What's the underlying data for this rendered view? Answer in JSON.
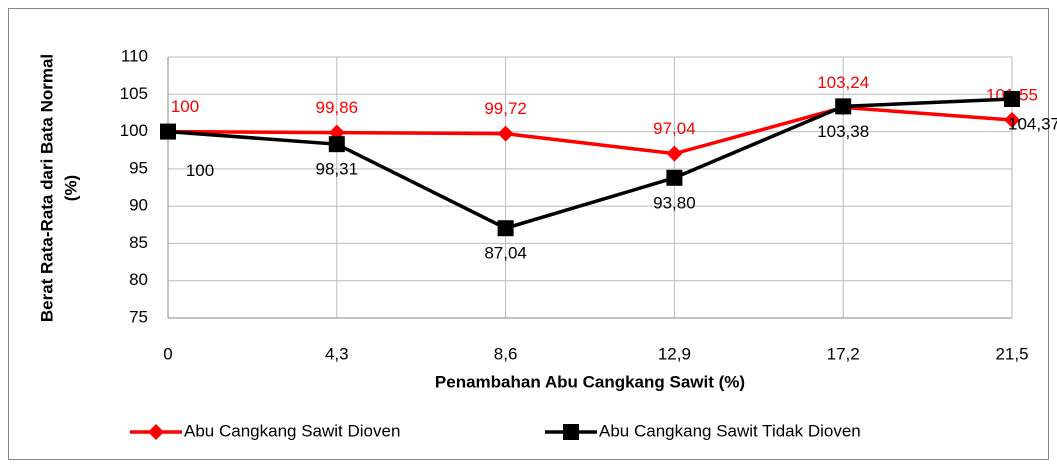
{
  "chart_data": {
    "type": "line",
    "categories": [
      "0",
      "4,3",
      "8,6",
      "12,9",
      "17,2",
      "21,5"
    ],
    "x_label": "Penambahan Abu Cangkang Sawit (%)",
    "y_label": [
      "Berat Rata-Rata dari Bata Normal",
      "(%)"
    ],
    "ylim": [
      75,
      110
    ],
    "yticks": [
      75,
      80,
      85,
      90,
      95,
      100,
      105,
      110
    ],
    "grid": true,
    "legend": "bottom",
    "series": [
      {
        "name": "Abu Cangkang Sawit Dioven",
        "color": "#ff0000",
        "marker": "diamond",
        "values": [
          100,
          99.86,
          99.72,
          97.04,
          103.24,
          101.55
        ],
        "value_labels": [
          "100",
          "99,86",
          "99,72",
          "97,04",
          "103,24",
          "101,55"
        ]
      },
      {
        "name": "Abu Cangkang Sawit Tidak Dioven",
        "color": "#000000",
        "marker": "square",
        "values": [
          100,
          98.31,
          87.04,
          93.8,
          103.38,
          104.37
        ],
        "value_labels": [
          "100",
          "98,31",
          "87,04",
          "93,80",
          "103,38",
          "104,37"
        ]
      }
    ]
  }
}
